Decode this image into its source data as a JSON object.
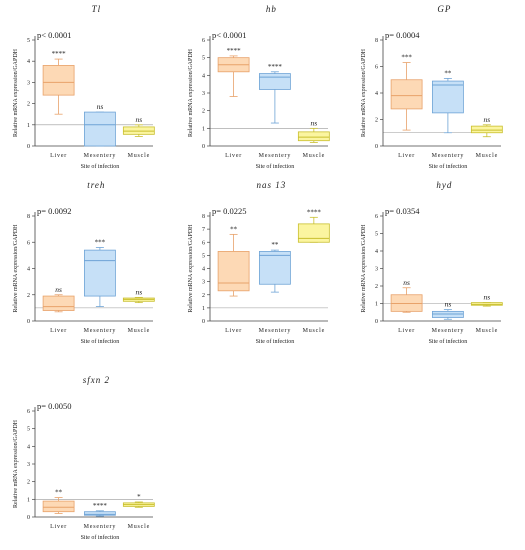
{
  "colors": {
    "Liver": {
      "fill": "#fdd9b5",
      "stroke": "#e8a26a"
    },
    "Mesentery": {
      "fill": "#c6e0f7",
      "stroke": "#6ea3d6"
    },
    "Muscle": {
      "fill": "#fbf5a0",
      "stroke": "#c9bf2e"
    },
    "axis": "#444444",
    "reference_line": "#999999"
  },
  "chart_data": [
    {
      "type": "boxplot",
      "title": "Tl",
      "p_value": "p< 0.0001",
      "ylabel": "Relative mRNA expression/GAPDH",
      "xlabel": "Site of infection",
      "ylim": [
        0,
        5
      ],
      "yticks": [
        0,
        1,
        2,
        3,
        4,
        5
      ],
      "reference_line": 1,
      "categories": [
        "Liver",
        "Mesentery",
        "Muscle"
      ],
      "boxes": [
        {
          "category": "Liver",
          "min": 1.5,
          "q1": 2.4,
          "median": 3.0,
          "q3": 3.8,
          "max": 4.1,
          "annotation": "****"
        },
        {
          "category": "Mesentery",
          "min": 0.0,
          "q1": 0.0,
          "median": 1.0,
          "q3": 1.6,
          "max": 1.6,
          "annotation": "ns"
        },
        {
          "category": "Muscle",
          "min": 0.45,
          "q1": 0.55,
          "median": 0.7,
          "q3": 0.9,
          "max": 1.0,
          "annotation": "ns"
        }
      ]
    },
    {
      "type": "boxplot",
      "title": "hb",
      "p_value": "p< 0.0001",
      "ylabel": "Relative mRNA expression/GAPDH",
      "xlabel": "Site of infection",
      "ylim": [
        0,
        6
      ],
      "yticks": [
        0,
        1,
        2,
        3,
        4,
        5,
        6
      ],
      "reference_line": 1,
      "categories": [
        "Liver",
        "Mesentery",
        "Muscle"
      ],
      "boxes": [
        {
          "category": "Liver",
          "min": 2.8,
          "q1": 4.2,
          "median": 4.6,
          "q3": 5.0,
          "max": 5.1,
          "annotation": "****"
        },
        {
          "category": "Mesentery",
          "min": 1.3,
          "q1": 3.2,
          "median": 3.9,
          "q3": 4.1,
          "max": 4.2,
          "annotation": "****"
        },
        {
          "category": "Muscle",
          "min": 0.2,
          "q1": 0.3,
          "median": 0.5,
          "q3": 0.8,
          "max": 1.0,
          "annotation": "ns"
        }
      ]
    },
    {
      "type": "boxplot",
      "title": "GP",
      "p_value": "p= 0.0004",
      "ylabel": "Relative mRNA expression/GAPDH",
      "xlabel": "Site of infection",
      "ylim": [
        0,
        8
      ],
      "yticks": [
        0,
        2,
        4,
        6,
        8
      ],
      "reference_line": 1,
      "categories": [
        "Liver",
        "Mesentery",
        "Muscle"
      ],
      "boxes": [
        {
          "category": "Liver",
          "min": 1.2,
          "q1": 2.8,
          "median": 3.8,
          "q3": 5.0,
          "max": 6.3,
          "annotation": "***"
        },
        {
          "category": "Mesentery",
          "min": 1.0,
          "q1": 2.5,
          "median": 4.6,
          "q3": 4.9,
          "max": 5.1,
          "annotation": "**"
        },
        {
          "category": "Muscle",
          "min": 0.7,
          "q1": 1.0,
          "median": 1.2,
          "q3": 1.5,
          "max": 1.6,
          "annotation": "ns"
        }
      ]
    },
    {
      "type": "boxplot",
      "title": "treh",
      "p_value": "p= 0.0092",
      "ylabel": "Relative mRNA expression/GAPDH",
      "xlabel": "Site of infection",
      "ylim": [
        0,
        8
      ],
      "yticks": [
        0,
        2,
        4,
        6,
        8
      ],
      "reference_line": 1,
      "categories": [
        "Liver",
        "Mesentery",
        "Muscle"
      ],
      "boxes": [
        {
          "category": "Liver",
          "min": 0.7,
          "q1": 0.8,
          "median": 1.1,
          "q3": 1.9,
          "max": 2.0,
          "annotation": "ns"
        },
        {
          "category": "Mesentery",
          "min": 1.1,
          "q1": 1.9,
          "median": 4.6,
          "q3": 5.4,
          "max": 5.6,
          "annotation": "***"
        },
        {
          "category": "Muscle",
          "min": 1.4,
          "q1": 1.5,
          "median": 1.65,
          "q3": 1.75,
          "max": 1.8,
          "annotation": "ns"
        }
      ]
    },
    {
      "type": "boxplot",
      "title": "nas 13",
      "p_value": "p= 0.0225",
      "ylabel": "Relative mRNA expression/GAPDH",
      "xlabel": "Site of infection",
      "ylim": [
        0,
        8
      ],
      "yticks": [
        0,
        1,
        2,
        3,
        4,
        5,
        6,
        7,
        8
      ],
      "reference_line": 1,
      "categories": [
        "Liver",
        "Mesentery",
        "Muscle"
      ],
      "boxes": [
        {
          "category": "Liver",
          "min": 1.9,
          "q1": 2.3,
          "median": 2.9,
          "q3": 5.3,
          "max": 6.6,
          "annotation": "**"
        },
        {
          "category": "Mesentery",
          "min": 2.2,
          "q1": 2.8,
          "median": 5.0,
          "q3": 5.3,
          "max": 5.4,
          "annotation": "**"
        },
        {
          "category": "Muscle",
          "min": 6.0,
          "q1": 6.0,
          "median": 6.3,
          "q3": 7.4,
          "max": 7.9,
          "annotation": "****"
        }
      ]
    },
    {
      "type": "boxplot",
      "title": "hyd",
      "p_value": "p= 0.0354",
      "ylabel": "Relative mRNA expression/GAPDH",
      "xlabel": "Site of infection",
      "ylim": [
        0,
        6
      ],
      "yticks": [
        0,
        1,
        2,
        3,
        4,
        5,
        6
      ],
      "reference_line": 1,
      "categories": [
        "Liver",
        "Mesentery",
        "Muscle"
      ],
      "boxes": [
        {
          "category": "Liver",
          "min": 0.5,
          "q1": 0.55,
          "median": 1.0,
          "q3": 1.5,
          "max": 1.9,
          "annotation": "ns"
        },
        {
          "category": "Mesentery",
          "min": 0.1,
          "q1": 0.2,
          "median": 0.4,
          "q3": 0.55,
          "max": 0.65,
          "annotation": "ns"
        },
        {
          "category": "Muscle",
          "min": 0.85,
          "q1": 0.9,
          "median": 0.95,
          "q3": 1.05,
          "max": 1.05,
          "annotation": "ns"
        }
      ]
    },
    {
      "type": "boxplot",
      "title": "sfxn 2",
      "p_value": "p= 0.0050",
      "ylabel": "Relative mRNA expression/GAPDH",
      "xlabel": "Site of infection",
      "ylim": [
        0,
        6
      ],
      "yticks": [
        0,
        1,
        2,
        3,
        4,
        5,
        6
      ],
      "reference_line": 1,
      "categories": [
        "Liver",
        "Mesentery",
        "Muscle"
      ],
      "boxes": [
        {
          "category": "Liver",
          "min": 0.2,
          "q1": 0.3,
          "median": 0.55,
          "q3": 0.9,
          "max": 1.1,
          "annotation": "**"
        },
        {
          "category": "Mesentery",
          "min": 0.05,
          "q1": 0.1,
          "median": 0.15,
          "q3": 0.3,
          "max": 0.35,
          "annotation": "****"
        },
        {
          "category": "Muscle",
          "min": 0.55,
          "q1": 0.6,
          "median": 0.7,
          "q3": 0.8,
          "max": 0.85,
          "annotation": "*"
        }
      ]
    }
  ]
}
